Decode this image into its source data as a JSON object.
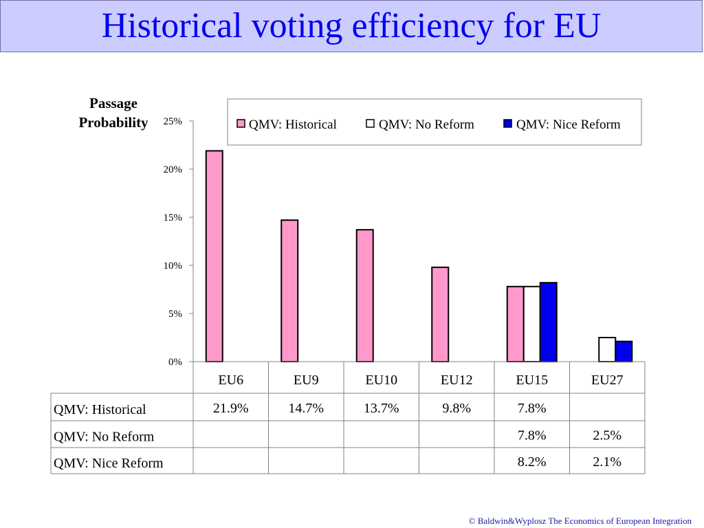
{
  "slide": {
    "title": "Historical voting efficiency for EU",
    "footer": "© Baldwin&Wyplosz The Economics of European Integration"
  },
  "colors": {
    "title_bg": "#ccccff",
    "title_text": "#0000ee",
    "historical": "#ff99cc",
    "no_reform": "#ffffff",
    "nice_reform": "#0000ee"
  },
  "chart_data": {
    "type": "bar",
    "ylabel": "Passage Probability",
    "ylabel_lines": [
      "Passage",
      "Probability"
    ],
    "ylim": [
      0,
      0.25
    ],
    "yticks": [
      0,
      0.05,
      0.1,
      0.15,
      0.2,
      0.25
    ],
    "ytick_labels": [
      "0%",
      "5%",
      "10%",
      "15%",
      "20%",
      "25%"
    ],
    "categories": [
      "EU6",
      "EU9",
      "EU10",
      "EU12",
      "EU15",
      "EU27"
    ],
    "legend_position": "top-right",
    "series": [
      {
        "name": "QMV: Historical",
        "color": "#ff99cc",
        "values": [
          0.219,
          0.147,
          0.137,
          0.098,
          0.078,
          null
        ],
        "labels": [
          "21.9%",
          "14.7%",
          "13.7%",
          "9.8%",
          "7.8%",
          ""
        ]
      },
      {
        "name": "QMV: No Reform",
        "color": "#ffffff",
        "values": [
          null,
          null,
          null,
          null,
          0.078,
          0.025
        ],
        "labels": [
          "",
          "",
          "",
          "",
          "7.8%",
          "2.5%"
        ]
      },
      {
        "name": "QMV: Nice Reform",
        "color": "#0000ee",
        "values": [
          null,
          null,
          null,
          null,
          0.082,
          0.021
        ],
        "labels": [
          "",
          "",
          "",
          "",
          "8.2%",
          "2.1%"
        ]
      }
    ]
  }
}
